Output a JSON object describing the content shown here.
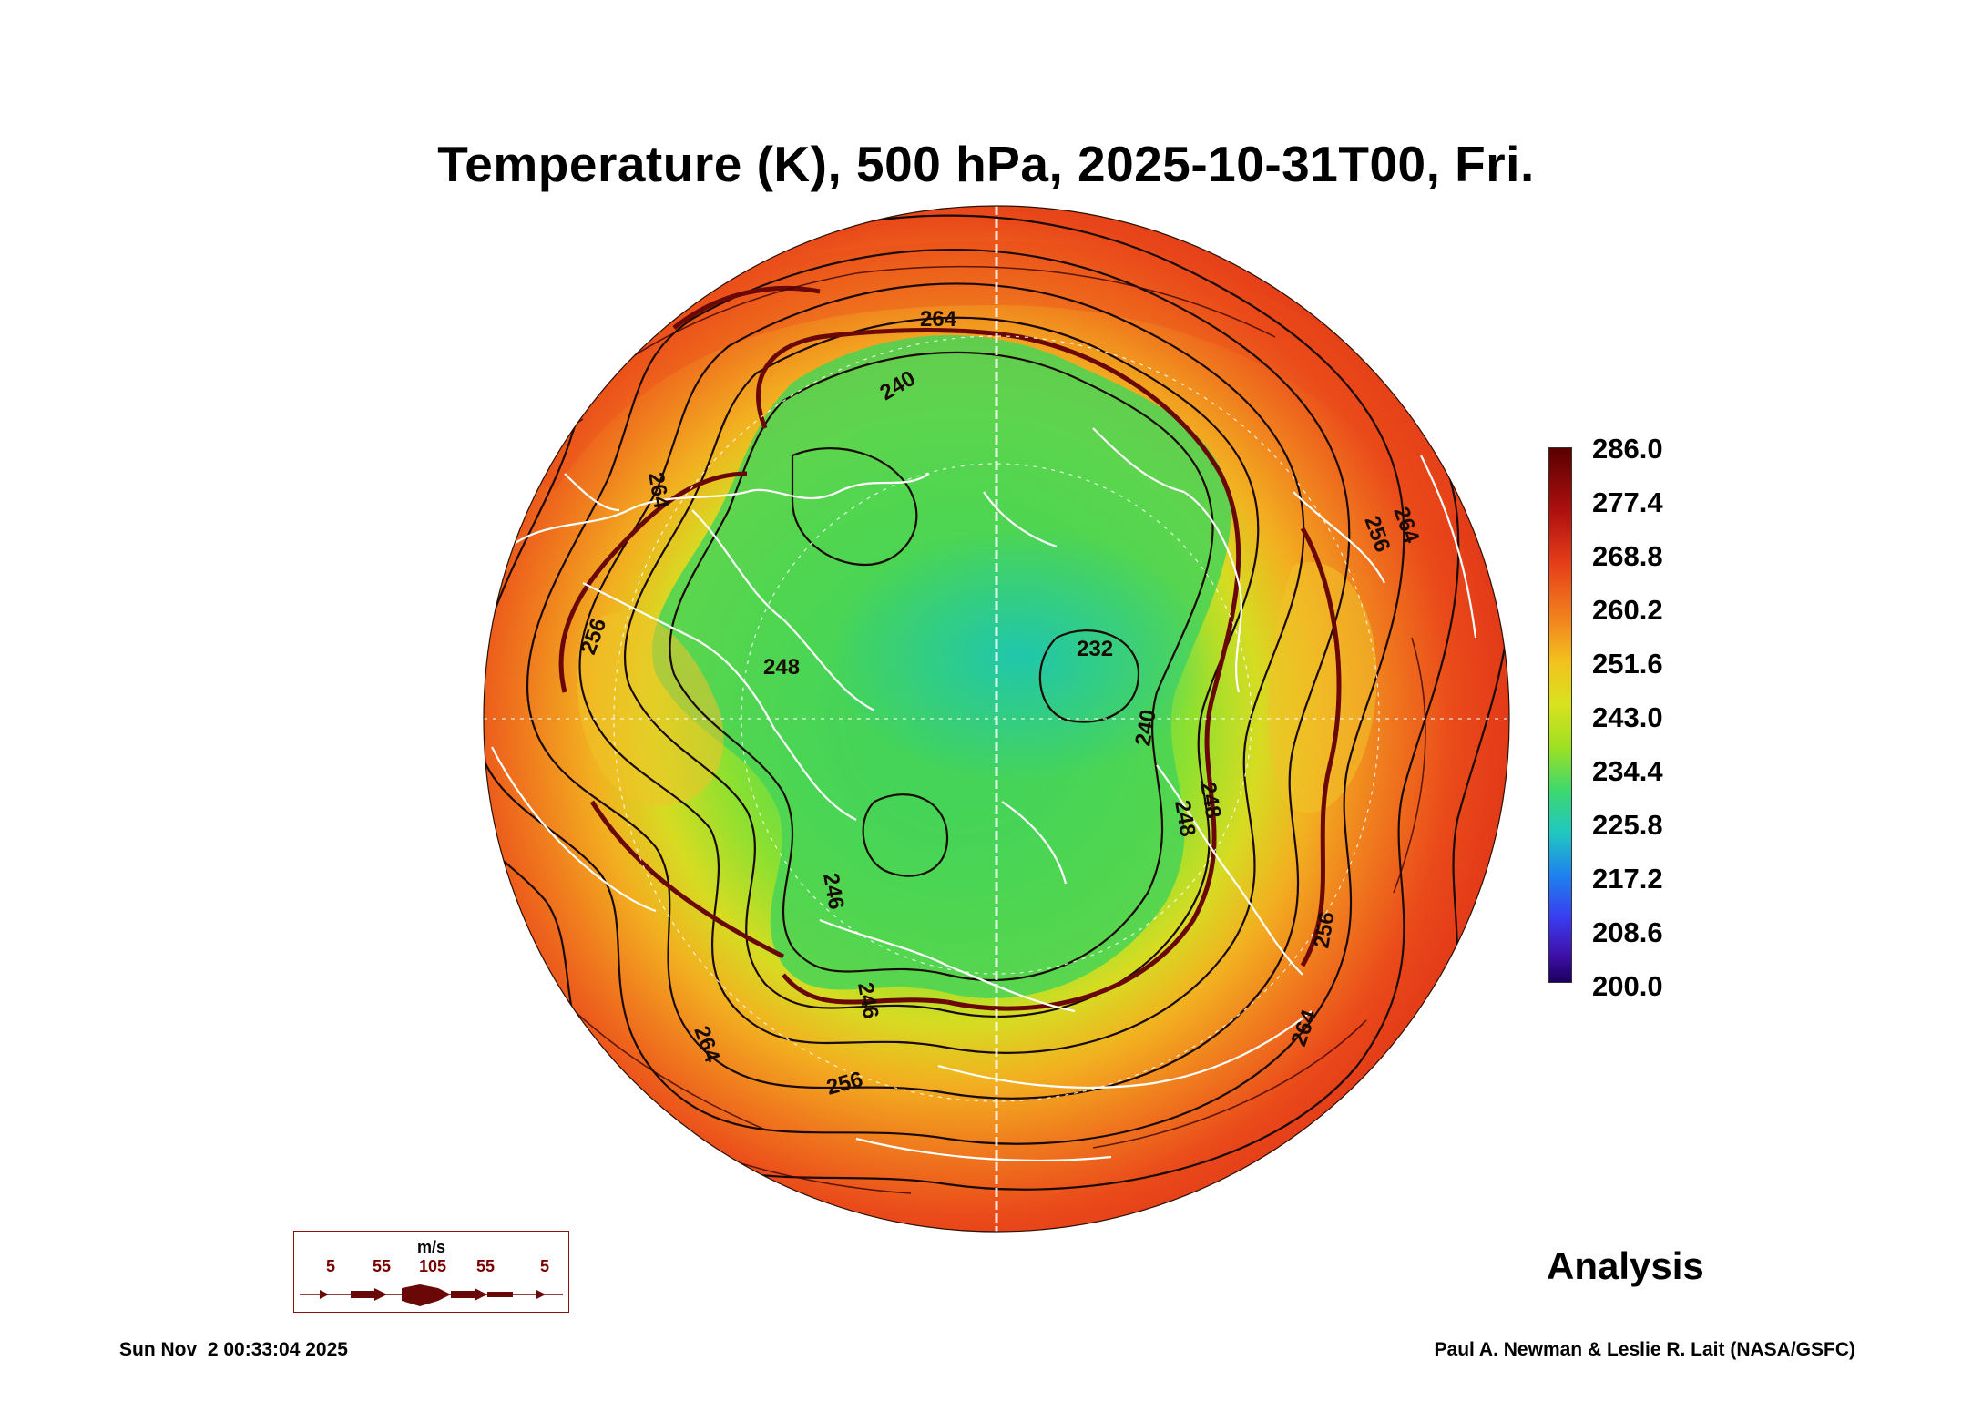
{
  "title": "Temperature (K), 500 hPa, 2025-10-31T00, Fri.",
  "colorbar": {
    "labels": [
      "286.0",
      "277.4",
      "268.8",
      "260.2",
      "251.6",
      "243.0",
      "234.4",
      "225.8",
      "217.2",
      "208.6",
      "200.0"
    ]
  },
  "contour_labels": [
    "264",
    "240",
    "264",
    "264",
    "256",
    "256",
    "248",
    "232",
    "240",
    "248",
    "246",
    "246",
    "248",
    "256",
    "264",
    "256",
    "264"
  ],
  "analysis_label": "Analysis",
  "wind_legend": {
    "unit": "m/s",
    "values": [
      "5",
      "55",
      "105",
      "55",
      "5"
    ]
  },
  "timestamp": "Sun Nov  2 00:33:04 2025",
  "credit": "Paul A. Newman & Leslie R. Lait (NASA/GSFC)",
  "colors": {
    "warm": "#e8461a",
    "cold": "#3ed86e",
    "contour": "#1a0a00",
    "streamline": "#6a0808",
    "coastline": "#ffffff"
  }
}
